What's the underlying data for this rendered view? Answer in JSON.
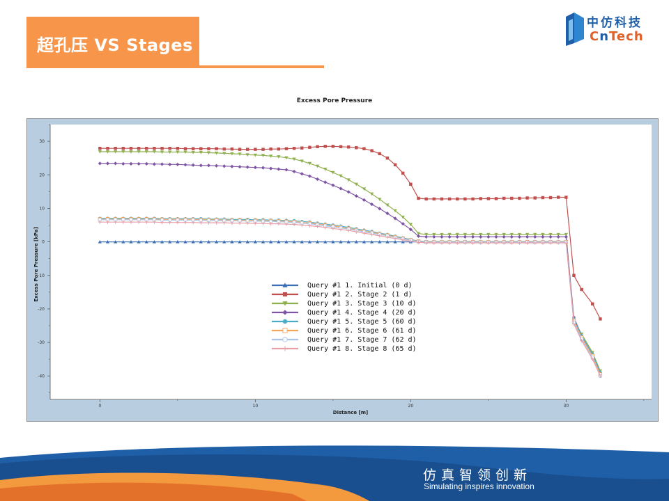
{
  "slide": {
    "title": "超孔压 VS Stages",
    "logo_cn": "中仿科技",
    "logo_en_1": "C",
    "logo_en_2": "n",
    "logo_en_3": "Tech",
    "slogan_cn": "仿真智领创新",
    "slogan_en": "Simulating inspires innovation",
    "accent_color": "#f7964a",
    "brand_blue": "#1f5fa8"
  },
  "chart_data": {
    "type": "line",
    "title": "Excess Pore Pressure",
    "xlabel": "Distance [m]",
    "ylabel": "Excess Pore Pressure [kPa]",
    "xlim": [
      -3.2,
      35.5
    ],
    "ylim": [
      -47,
      35
    ],
    "xticks": [
      0,
      10,
      20,
      30
    ],
    "yticks": [
      -40,
      -30,
      -20,
      -10,
      0,
      10,
      20,
      30
    ],
    "legend_position": "center-left",
    "grid": false,
    "series": [
      {
        "name": "Query #1 1. Initial (0 d)",
        "color": "#3d6fb6",
        "marker": "triangle-up",
        "x": [
          0,
          0.5,
          1,
          1.5,
          2,
          2.5,
          3,
          3.5,
          4,
          4.5,
          5,
          5.5,
          6,
          6.5,
          7,
          7.5,
          8,
          8.5,
          9,
          9.5,
          10,
          10.5,
          11,
          11.5,
          12,
          12.5,
          13,
          13.5,
          14,
          14.5,
          15,
          15.5,
          16,
          16.5,
          17,
          17.5,
          18,
          18.5,
          19,
          19.5,
          20,
          20.5,
          21,
          21.5,
          22,
          22.5,
          23,
          23.5,
          24,
          24.5,
          25,
          25.5,
          26,
          26.5,
          27,
          27.5,
          28,
          28.5,
          29,
          29.5,
          30
        ],
        "y": [
          0,
          0,
          0,
          0,
          0,
          0,
          0,
          0,
          0,
          0,
          0,
          0,
          0,
          0,
          0,
          0,
          0,
          0,
          0,
          0,
          0,
          0,
          0,
          0,
          0,
          0,
          0,
          0,
          0,
          0,
          0,
          0,
          0,
          0,
          0,
          0,
          0,
          0,
          0,
          0,
          0,
          0,
          0,
          0,
          0,
          0,
          0,
          0,
          0,
          0,
          0,
          0,
          0,
          0,
          0,
          0,
          0,
          0,
          0,
          0,
          0
        ]
      },
      {
        "name": "Query #1 2. Stage 2 (1 d)",
        "color": "#c0504d",
        "marker": "square",
        "x": [
          0,
          0.5,
          1,
          1.5,
          2,
          2.5,
          3,
          3.5,
          4,
          4.5,
          5,
          5.5,
          6,
          6.5,
          7,
          7.5,
          8,
          8.5,
          9,
          9.5,
          10,
          10.5,
          11,
          11.5,
          12,
          12.5,
          13,
          13.5,
          14,
          14.5,
          15,
          15.5,
          16,
          16.5,
          17,
          17.5,
          18,
          18.5,
          19,
          19.5,
          20,
          20.5,
          21,
          21.5,
          22,
          22.5,
          23,
          23.5,
          24,
          24.5,
          25,
          25.5,
          26,
          26.5,
          27,
          27.5,
          28,
          28.5,
          29,
          29.5,
          30,
          30.5,
          31,
          31.7,
          32.2
        ],
        "y": [
          27.9,
          27.9,
          27.9,
          27.9,
          27.9,
          27.9,
          27.9,
          27.9,
          27.9,
          27.9,
          27.9,
          27.8,
          27.8,
          27.8,
          27.8,
          27.8,
          27.7,
          27.7,
          27.6,
          27.6,
          27.6,
          27.6,
          27.7,
          27.7,
          27.8,
          27.9,
          28.0,
          28.2,
          28.4,
          28.5,
          28.5,
          28.4,
          28.3,
          28.1,
          27.8,
          27.2,
          26.3,
          25.0,
          23.0,
          20.5,
          17.2,
          13.0,
          12.8,
          12.8,
          12.8,
          12.8,
          12.8,
          12.8,
          12.8,
          12.9,
          12.9,
          12.9,
          13.0,
          13.0,
          13.0,
          13.1,
          13.1,
          13.2,
          13.2,
          13.3,
          13.3,
          -10,
          -14.2,
          -18.5,
          -23
        ]
      },
      {
        "name": "Query #1 3. Stage 3 (10 d)",
        "color": "#8fb04e",
        "marker": "triangle-down",
        "x": [
          0,
          0.5,
          1,
          1.5,
          2,
          2.5,
          3,
          3.5,
          4,
          4.5,
          5,
          5.5,
          6,
          6.5,
          7,
          7.5,
          8,
          8.5,
          9,
          9.5,
          10,
          10.5,
          11,
          11.5,
          12,
          12.5,
          13,
          13.5,
          14,
          14.5,
          15,
          15.5,
          16,
          16.5,
          17,
          17.5,
          18,
          18.5,
          19,
          19.5,
          20,
          20.5,
          21,
          21.5,
          22,
          22.5,
          23,
          23.5,
          24,
          24.5,
          25,
          25.5,
          26,
          26.5,
          27,
          27.5,
          28,
          28.5,
          29,
          29.5,
          30,
          30.5,
          31,
          31.7,
          32.2
        ],
        "y": [
          26.9,
          26.9,
          26.9,
          26.9,
          26.9,
          26.9,
          26.9,
          26.9,
          26.8,
          26.8,
          26.8,
          26.8,
          26.7,
          26.7,
          26.6,
          26.5,
          26.4,
          26.3,
          26.2,
          26.0,
          25.9,
          25.8,
          25.6,
          25.4,
          25.1,
          24.7,
          24.1,
          23.4,
          22.6,
          21.7,
          20.7,
          19.7,
          18.5,
          17.2,
          15.8,
          14.3,
          12.7,
          11.0,
          9.3,
          7.4,
          5.2,
          2.5,
          2.2,
          2.2,
          2.2,
          2.2,
          2.2,
          2.2,
          2.2,
          2.2,
          2.2,
          2.2,
          2.2,
          2.2,
          2.2,
          2.2,
          2.2,
          2.2,
          2.2,
          2.2,
          2.2,
          -23.5,
          -27.5,
          -33,
          -38.5
        ]
      },
      {
        "name": "Query #1 4. Stage 4 (20 d)",
        "color": "#7e55a5",
        "marker": "diamond",
        "x": [
          0,
          0.5,
          1,
          1.5,
          2,
          2.5,
          3,
          3.5,
          4,
          4.5,
          5,
          5.5,
          6,
          6.5,
          7,
          7.5,
          8,
          8.5,
          9,
          9.5,
          10,
          10.5,
          11,
          11.5,
          12,
          12.5,
          13,
          13.5,
          14,
          14.5,
          15,
          15.5,
          16,
          16.5,
          17,
          17.5,
          18,
          18.5,
          19,
          19.5,
          20,
          20.5,
          21,
          21.5,
          22,
          22.5,
          23,
          23.5,
          24,
          24.5,
          25,
          25.5,
          26,
          26.5,
          27,
          27.5,
          28,
          28.5,
          29,
          29.5,
          30,
          30.5,
          31,
          31.7,
          32.2
        ],
        "y": [
          23.4,
          23.4,
          23.4,
          23.3,
          23.3,
          23.3,
          23.3,
          23.2,
          23.2,
          23.1,
          23.1,
          23.0,
          22.9,
          22.8,
          22.8,
          22.7,
          22.6,
          22.5,
          22.4,
          22.3,
          22.2,
          22.1,
          21.9,
          21.7,
          21.5,
          21.0,
          20.3,
          19.6,
          18.7,
          17.8,
          16.9,
          15.9,
          14.9,
          13.7,
          12.5,
          11.2,
          9.9,
          8.5,
          7.0,
          5.4,
          3.7,
          1.7,
          1.5,
          1.5,
          1.5,
          1.5,
          1.5,
          1.5,
          1.5,
          1.5,
          1.5,
          1.5,
          1.5,
          1.5,
          1.5,
          1.5,
          1.5,
          1.5,
          1.5,
          1.5,
          1.5,
          -22.5,
          -28,
          -33.5,
          -39
        ]
      },
      {
        "name": "Query #1 5. Stage 5 (60 d)",
        "color": "#4bacc6",
        "marker": "circle",
        "x": [
          0,
          0.5,
          1,
          1.5,
          2,
          2.5,
          3,
          3.5,
          4,
          4.5,
          5,
          5.5,
          6,
          6.5,
          7,
          7.5,
          8,
          8.5,
          9,
          9.5,
          10,
          10.5,
          11,
          11.5,
          12,
          12.5,
          13,
          13.5,
          14,
          14.5,
          15,
          15.5,
          16,
          16.5,
          17,
          17.5,
          18,
          18.5,
          19,
          19.5,
          20,
          20.5,
          21,
          21.5,
          22,
          22.5,
          23,
          23.5,
          24,
          24.5,
          25,
          25.5,
          26,
          26.5,
          27,
          27.5,
          28,
          28.5,
          29,
          29.5,
          30,
          30.5,
          31,
          31.7,
          32.2
        ],
        "y": [
          7.0,
          7.0,
          7.0,
          7.0,
          7.0,
          7.0,
          7.0,
          7.0,
          6.9,
          6.9,
          6.9,
          6.9,
          6.9,
          6.9,
          6.8,
          6.8,
          6.8,
          6.7,
          6.7,
          6.7,
          6.6,
          6.6,
          6.5,
          6.5,
          6.4,
          6.3,
          6.1,
          5.9,
          5.6,
          5.3,
          5.0,
          4.7,
          4.3,
          3.9,
          3.5,
          3.1,
          2.6,
          2.2,
          1.7,
          1.2,
          0.7,
          0.3,
          0.1,
          0.1,
          0.1,
          0.1,
          0.1,
          0.1,
          0.1,
          0.1,
          0.1,
          0.1,
          0.1,
          0.1,
          0.1,
          0.1,
          0.1,
          0.1,
          0.1,
          0.1,
          0.1,
          -23,
          -28,
          -33.5,
          -39
        ]
      },
      {
        "name": "Query #1 6. Stage 6 (61 d)",
        "color": "#f5a45c",
        "marker": "open-square",
        "x": [
          0,
          0.5,
          1,
          1.5,
          2,
          2.5,
          3,
          3.5,
          4,
          4.5,
          5,
          5.5,
          6,
          6.5,
          7,
          7.5,
          8,
          8.5,
          9,
          9.5,
          10,
          10.5,
          11,
          11.5,
          12,
          12.5,
          13,
          13.5,
          14,
          14.5,
          15,
          15.5,
          16,
          16.5,
          17,
          17.5,
          18,
          18.5,
          19,
          19.5,
          20,
          20.5,
          21,
          21.5,
          22,
          22.5,
          23,
          23.5,
          24,
          24.5,
          25,
          25.5,
          26,
          26.5,
          27,
          27.5,
          28,
          28.5,
          29,
          29.5,
          30,
          30.5,
          31,
          31.7,
          32.2
        ],
        "y": [
          6.8,
          6.8,
          6.8,
          6.8,
          6.8,
          6.8,
          6.8,
          6.8,
          6.7,
          6.7,
          6.7,
          6.7,
          6.7,
          6.6,
          6.6,
          6.6,
          6.5,
          6.5,
          6.5,
          6.4,
          6.4,
          6.3,
          6.3,
          6.2,
          6.1,
          6.0,
          5.8,
          5.6,
          5.3,
          5.0,
          4.7,
          4.4,
          4.0,
          3.6,
          3.2,
          2.8,
          2.4,
          2.0,
          1.5,
          1.0,
          0.6,
          0.2,
          0.0,
          0.0,
          0.0,
          0.0,
          0.0,
          0.0,
          0.0,
          0.0,
          0.0,
          0.0,
          0.0,
          0.0,
          0.0,
          0.0,
          0.0,
          0.0,
          0.0,
          0.0,
          0.0,
          -23.5,
          -28.5,
          -34,
          -39.5
        ]
      },
      {
        "name": "Query #1 7. Stage 7 (62 d)",
        "color": "#a9c4e8",
        "marker": "open-circle",
        "x": [
          0,
          0.5,
          1,
          1.5,
          2,
          2.5,
          3,
          3.5,
          4,
          4.5,
          5,
          5.5,
          6,
          6.5,
          7,
          7.5,
          8,
          8.5,
          9,
          9.5,
          10,
          10.5,
          11,
          11.5,
          12,
          12.5,
          13,
          13.5,
          14,
          14.5,
          15,
          15.5,
          16,
          16.5,
          17,
          17.5,
          18,
          18.5,
          19,
          19.5,
          20,
          20.5,
          21,
          21.5,
          22,
          22.5,
          23,
          23.5,
          24,
          24.5,
          25,
          25.5,
          26,
          26.5,
          27,
          27.5,
          28,
          28.5,
          29,
          29.5,
          30,
          30.5,
          31,
          31.7,
          32.2
        ],
        "y": [
          6.6,
          6.6,
          6.6,
          6.6,
          6.6,
          6.6,
          6.6,
          6.6,
          6.5,
          6.5,
          6.5,
          6.5,
          6.5,
          6.4,
          6.4,
          6.4,
          6.3,
          6.3,
          6.3,
          6.2,
          6.2,
          6.1,
          6.1,
          6.0,
          5.9,
          5.8,
          5.6,
          5.4,
          5.1,
          4.8,
          4.5,
          4.2,
          3.8,
          3.4,
          3.0,
          2.6,
          2.2,
          1.8,
          1.3,
          0.9,
          0.5,
          0.1,
          -0.1,
          -0.1,
          -0.1,
          -0.1,
          -0.1,
          -0.1,
          -0.1,
          -0.1,
          -0.1,
          -0.1,
          -0.1,
          -0.1,
          -0.1,
          -0.1,
          -0.1,
          -0.1,
          -0.1,
          -0.1,
          -0.1,
          -24,
          -29,
          -34.5,
          -40
        ]
      },
      {
        "name": "Query #1 8. Stage 8 (65 d)",
        "color": "#e8a0a8",
        "marker": "plus",
        "x": [
          0,
          0.5,
          1,
          1.5,
          2,
          2.5,
          3,
          3.5,
          4,
          4.5,
          5,
          5.5,
          6,
          6.5,
          7,
          7.5,
          8,
          8.5,
          9,
          9.5,
          10,
          10.5,
          11,
          11.5,
          12,
          12.5,
          13,
          13.5,
          14,
          14.5,
          15,
          15.5,
          16,
          16.5,
          17,
          17.5,
          18,
          18.5,
          19,
          19.5,
          20,
          20.5,
          21,
          21.5,
          22,
          22.5,
          23,
          23.5,
          24,
          24.5,
          25,
          25.5,
          26,
          26.5,
          27,
          27.5,
          28,
          28.5,
          29,
          29.5,
          30,
          30.5,
          31,
          31.7,
          32.2
        ],
        "y": [
          5.9,
          5.9,
          5.9,
          5.9,
          5.9,
          5.9,
          5.9,
          5.9,
          5.8,
          5.8,
          5.8,
          5.8,
          5.8,
          5.7,
          5.7,
          5.7,
          5.7,
          5.6,
          5.6,
          5.6,
          5.5,
          5.5,
          5.4,
          5.4,
          5.3,
          5.2,
          5.0,
          4.8,
          4.6,
          4.3,
          4.0,
          3.7,
          3.4,
          3.0,
          2.6,
          2.2,
          1.8,
          1.4,
          1.0,
          0.6,
          0.2,
          -0.1,
          -0.3,
          -0.3,
          -0.3,
          -0.3,
          -0.3,
          -0.3,
          -0.3,
          -0.3,
          -0.3,
          -0.3,
          -0.3,
          -0.3,
          -0.3,
          -0.3,
          -0.3,
          -0.3,
          -0.3,
          -0.3,
          -0.3,
          -24.5,
          -29.5,
          -35,
          -40
        ]
      }
    ]
  }
}
